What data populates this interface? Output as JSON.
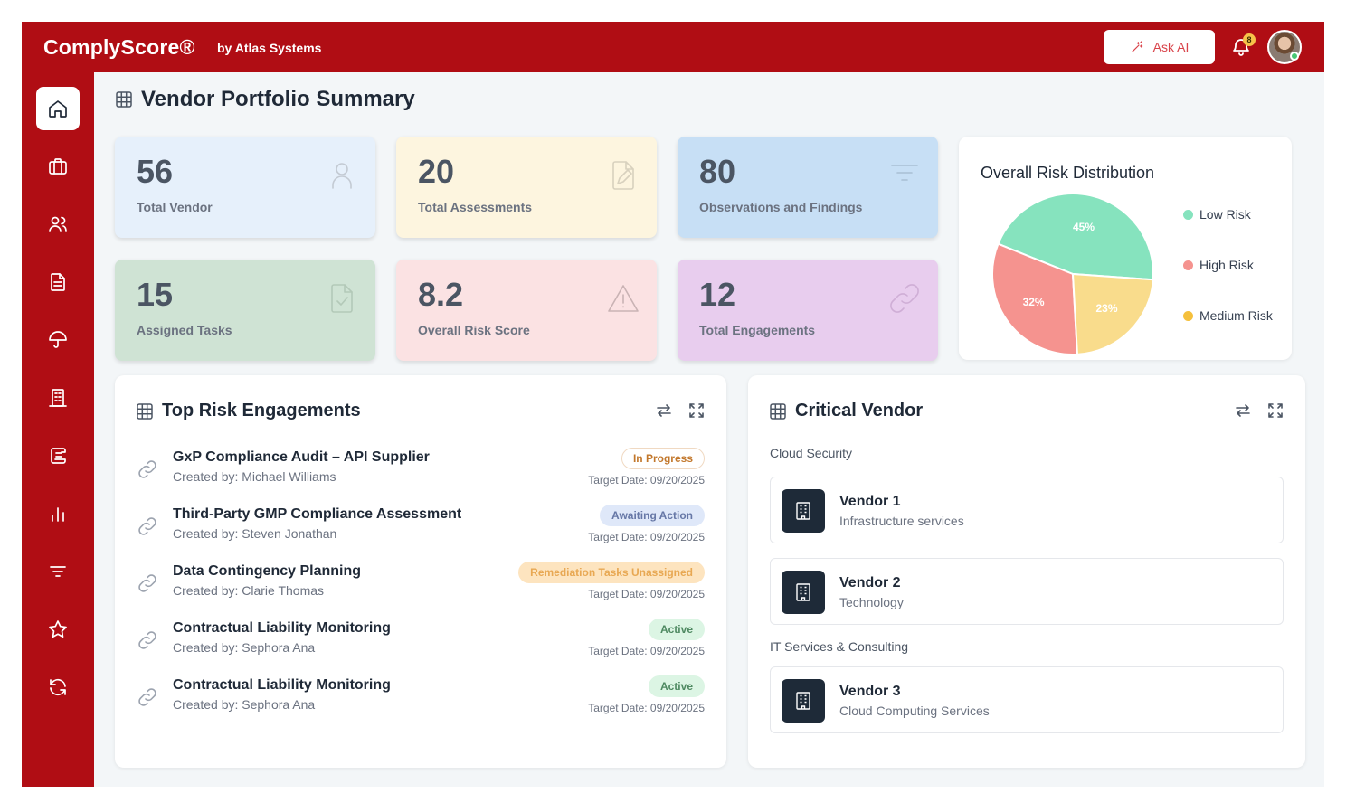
{
  "header": {
    "brand": "ComplyScore®",
    "brand_sub": "by Atlas Systems",
    "ask_ai": "Ask AI",
    "notification_count": "8"
  },
  "sidebar": {
    "items": [
      {
        "icon": "home-icon",
        "active": true
      },
      {
        "icon": "briefcase-icon"
      },
      {
        "icon": "users-icon"
      },
      {
        "icon": "document-icon"
      },
      {
        "icon": "umbrella-icon"
      },
      {
        "icon": "building-icon"
      },
      {
        "icon": "scroll-icon"
      },
      {
        "icon": "bar-chart-icon"
      },
      {
        "icon": "filter-icon"
      },
      {
        "icon": "star-icon"
      },
      {
        "icon": "refresh-icon"
      }
    ]
  },
  "page": {
    "title": "Vendor Portfolio Summary"
  },
  "stats": [
    {
      "value": "56",
      "label": "Total Vendor",
      "icon": "user-icon",
      "color": "#e6f0fb"
    },
    {
      "value": "20",
      "label": "Total Assessments",
      "icon": "file-edit-icon",
      "color": "#fdf5df"
    },
    {
      "value": "80",
      "label": "Observations and Findings",
      "icon": "filter-icon",
      "color": "#c7dff5"
    },
    {
      "value": "15",
      "label": "Assigned Tasks",
      "icon": "file-check-icon",
      "color": "#cfe3d4"
    },
    {
      "value": "8.2",
      "label": "Overall Risk Score",
      "icon": "warning-icon",
      "color": "#fbe2e3"
    },
    {
      "value": "12",
      "label": "Total Engagements",
      "icon": "link-icon",
      "color": "#e8cdee"
    }
  ],
  "chart_data": {
    "type": "pie",
    "title": "Overall Risk Distribution",
    "categories": [
      "Low Risk",
      "High Risk",
      "Medium Risk"
    ],
    "values": [
      45,
      32,
      23
    ],
    "value_labels": [
      "45%",
      "32%",
      "23%"
    ],
    "colors": [
      "#86e3be",
      "#f5938f",
      "#f9dc8c"
    ],
    "legend_placement": "right"
  },
  "top_risk": {
    "title": "Top Risk Engagements",
    "items": [
      {
        "title": "GxP Compliance Audit – API Supplier",
        "created": "Created by: Michael Williams",
        "status": "In Progress",
        "date": "Target Date: 09/20/2025",
        "status_bg": "#ffffff",
        "status_fg": "#c2772b",
        "status_border": "#f0d9c2"
      },
      {
        "title": "Third-Party GMP Compliance Assessment",
        "created": "Created by: Steven Jonathan",
        "status": "Awaiting Action",
        "date": "Target Date: 09/20/2025",
        "status_bg": "#dfe8f9",
        "status_fg": "#6677a6",
        "status_border": "#dfe8f9"
      },
      {
        "title": "Data Contingency Planning",
        "created": "Created by: Clarie Thomas",
        "status": "Remediation Tasks Unassigned",
        "date": "Target Date: 09/20/2025",
        "status_bg": "#fde4bf",
        "status_fg": "#e8a853",
        "status_border": "#fde4bf"
      },
      {
        "title": "Contractual Liability Monitoring",
        "created": "Created by: Sephora Ana",
        "status": "Active",
        "date": "Target Date: 09/20/2025",
        "status_bg": "#dcf5e4",
        "status_fg": "#4f8a62",
        "status_border": "#dcf5e4"
      },
      {
        "title": "Contractual Liability Monitoring",
        "created": "Created by: Sephora Ana",
        "status": "Active",
        "date": "Target Date: 09/20/2025",
        "status_bg": "#dcf5e4",
        "status_fg": "#4f8a62",
        "status_border": "#dcf5e4"
      }
    ]
  },
  "critical": {
    "title": "Critical Vendor",
    "groups": [
      {
        "label": "Cloud Security",
        "vendors": [
          {
            "name": "Vendor 1",
            "sub": "Infrastructure services"
          },
          {
            "name": "Vendor 2",
            "sub": "Technology"
          }
        ]
      },
      {
        "label": "IT Services & Consulting",
        "vendors": [
          {
            "name": "Vendor 3",
            "sub": "Cloud Computing Services"
          }
        ]
      }
    ]
  }
}
